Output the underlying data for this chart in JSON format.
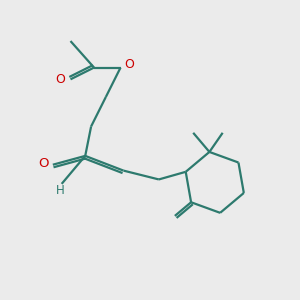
{
  "bg_color": "#ebebeb",
  "bond_color": "#2d7a6e",
  "o_color": "#cc0000",
  "line_width": 1.6,
  "fig_size": [
    3.0,
    3.0
  ],
  "dpi": 100,
  "xlim": [
    0,
    10
  ],
  "ylim": [
    0,
    10
  ]
}
